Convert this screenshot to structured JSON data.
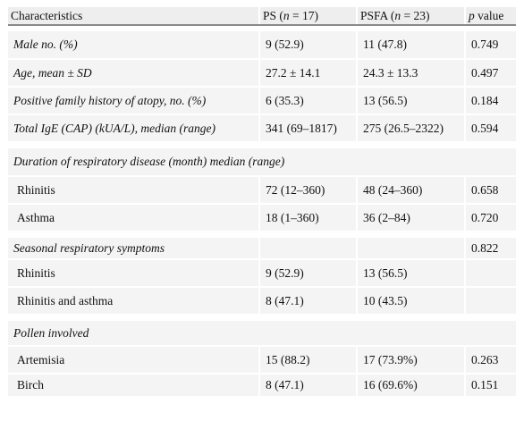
{
  "header": {
    "characteristics": "Characteristics",
    "ps_label": "PS",
    "ps_n": "(",
    "ps_n_var": "n",
    "ps_n_val": " = 17)",
    "psfa_label": "PSFA",
    "psfa_n": "(",
    "psfa_n_var": "n",
    "psfa_n_val": " = 23)",
    "p_var": "p",
    "p_label": " value"
  },
  "rows": {
    "male": {
      "label": "Male no. (%)",
      "ps": "9 (52.9)",
      "psfa": "11 (47.8)",
      "p": "0.749"
    },
    "age": {
      "label": "Age, mean ± SD",
      "ps": "27.2 ± 14.1",
      "psfa": "24.3 ± 13.3",
      "p": "0.497"
    },
    "family": {
      "label": "Positive family history of atopy, no. (%)",
      "ps": "6 (35.3)",
      "psfa": "13 (56.5)",
      "p": "0.184"
    },
    "ige": {
      "label": "Total IgE (CAP) (kUA/L), median (range)",
      "ps": "341 (69–1817)",
      "psfa": "275 (26.5–2322)",
      "p": "0.594"
    },
    "duration_header": {
      "label": "Duration of respiratory disease (month) median (range)"
    },
    "rhinitis_dur": {
      "label": "Rhinitis",
      "ps": "72 (12–360)",
      "psfa": "48 (24–360)",
      "p": "0.658"
    },
    "asthma_dur": {
      "label": "Asthma",
      "ps": "18 (1–360)",
      "psfa": "36 (2–84)",
      "p": "0.720"
    },
    "seasonal": {
      "label": "Seasonal respiratory symptoms",
      "ps": "",
      "psfa": "",
      "p": "0.822"
    },
    "rhinitis_seas": {
      "label": "Rhinitis",
      "ps": "9 (52.9)",
      "psfa": "13 (56.5)",
      "p": ""
    },
    "rhin_asthma": {
      "label": "Rhinitis and asthma",
      "ps": "8 (47.1)",
      "psfa": "10 (43.5)",
      "p": ""
    },
    "pollen_header": {
      "label": "Pollen involved"
    },
    "artemisia": {
      "label": "Artemisia",
      "ps": "15 (88.2)",
      "psfa": "17 (73.9%)",
      "p": "0.263"
    },
    "birch": {
      "label": "Birch",
      "ps": "8 (47.1)",
      "psfa": "16 (69.6%)",
      "p": "0.151"
    }
  }
}
